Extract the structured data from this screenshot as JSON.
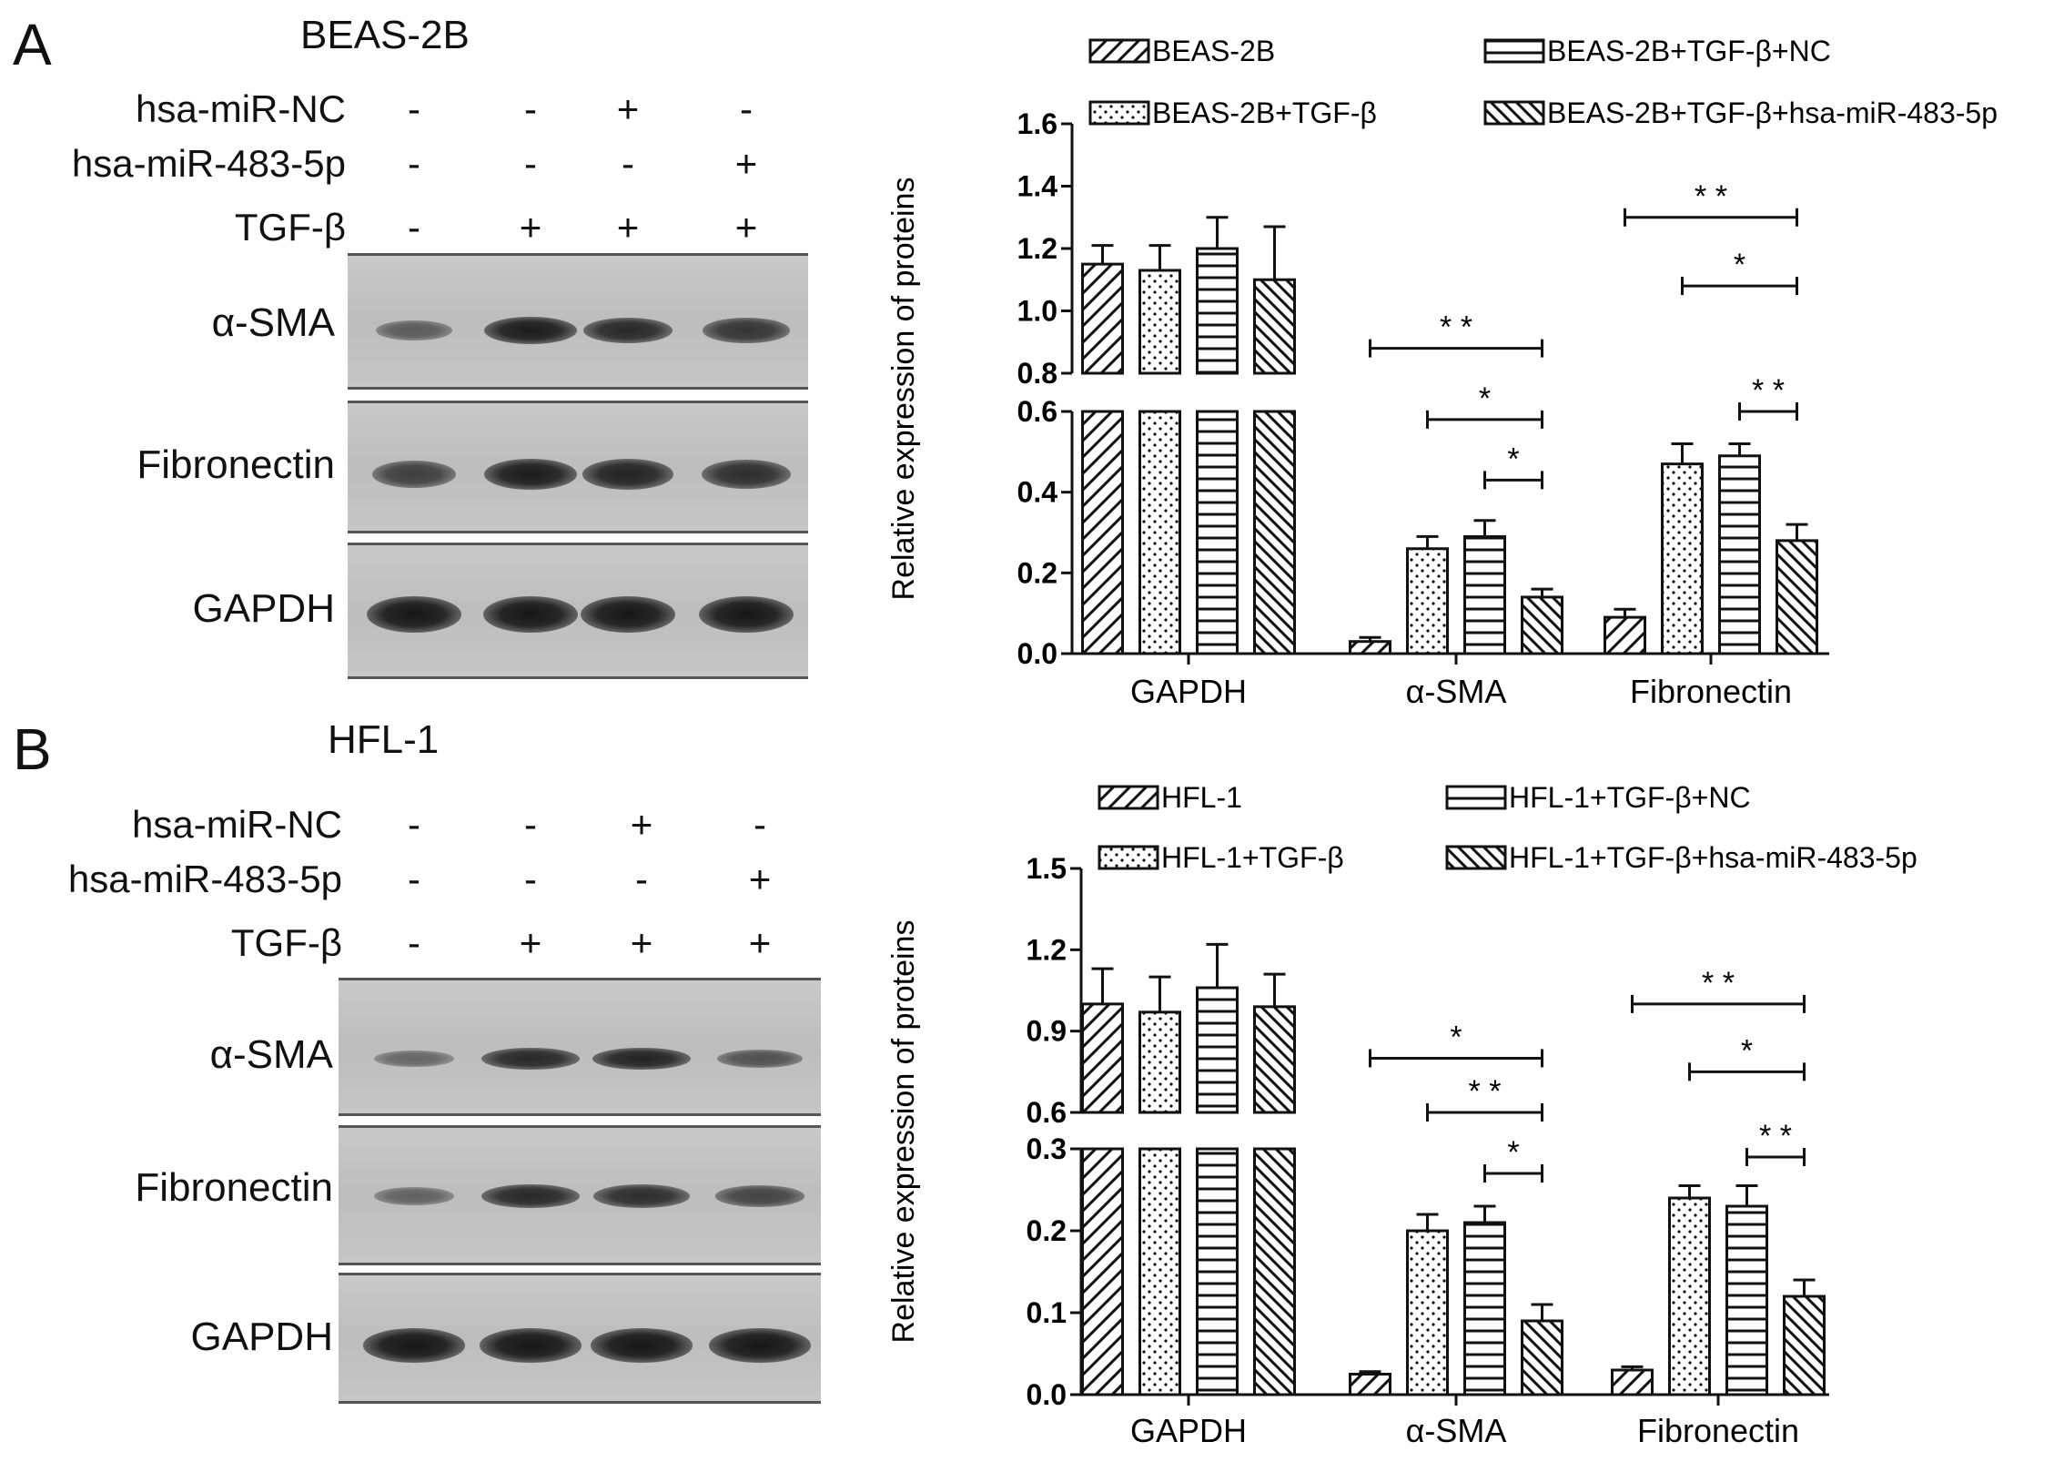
{
  "panels": [
    {
      "letter": "A",
      "cell_line": "BEAS-2B",
      "conditions": [
        {
          "label": "hsa-miR-NC",
          "signs": [
            "-",
            "-",
            "+",
            "-"
          ]
        },
        {
          "label": "hsa-miR-483-5p",
          "signs": [
            "-",
            "-",
            "-",
            "+"
          ]
        },
        {
          "label": "TGF-β",
          "signs": [
            "-",
            "+",
            "+",
            "+"
          ]
        }
      ],
      "blots": [
        {
          "label": "α-SMA",
          "intensity": [
            0.35,
            0.9,
            0.8,
            0.7
          ]
        },
        {
          "label": "Fibronectin",
          "intensity": [
            0.6,
            0.9,
            0.85,
            0.75
          ]
        },
        {
          "label": "GAPDH",
          "intensity": [
            0.95,
            0.95,
            0.95,
            0.95
          ]
        }
      ]
    },
    {
      "letter": "B",
      "cell_line": "HFL-1",
      "conditions": [
        {
          "label": "hsa-miR-NC",
          "signs": [
            "-",
            "-",
            "+",
            "-"
          ]
        },
        {
          "label": "hsa-miR-483-5p",
          "signs": [
            "-",
            "-",
            "-",
            "+"
          ]
        },
        {
          "label": "TGF-β",
          "signs": [
            "-",
            "+",
            "+",
            "+"
          ]
        }
      ],
      "blots": [
        {
          "label": "α-SMA",
          "intensity": [
            0.25,
            0.8,
            0.85,
            0.45
          ]
        },
        {
          "label": "Fibronectin",
          "intensity": [
            0.3,
            0.8,
            0.75,
            0.55
          ]
        },
        {
          "label": "GAPDH",
          "intensity": [
            0.95,
            0.95,
            0.95,
            0.95
          ]
        }
      ]
    }
  ],
  "chart_data": [
    {
      "type": "bar",
      "ylabel": "Relative expression of proteins",
      "categories": [
        "GAPDH",
        "α-SMA",
        "Fibronectin"
      ],
      "axis_break": {
        "lower_range": [
          0,
          0.6
        ],
        "upper_range": [
          0.8,
          1.6
        ]
      },
      "lower_ticks": [
        "0.0",
        "0.2",
        "0.4",
        "0.6"
      ],
      "upper_ticks": [
        "0.8",
        "1.0",
        "1.2",
        "1.4",
        "1.6"
      ],
      "legend_position": "top",
      "series": [
        {
          "name": "BEAS-2B",
          "pattern": "diag-dense",
          "values": [
            1.15,
            0.03,
            0.09
          ],
          "errors": [
            0.06,
            0.01,
            0.02
          ]
        },
        {
          "name": "BEAS-2B+TGF-β",
          "pattern": "dots",
          "values": [
            1.13,
            0.26,
            0.47
          ],
          "errors": [
            0.08,
            0.03,
            0.05
          ]
        },
        {
          "name": "BEAS-2B+TGF-β+NC",
          "pattern": "horizontal",
          "values": [
            1.2,
            0.29,
            0.49
          ],
          "errors": [
            0.1,
            0.04,
            0.03
          ]
        },
        {
          "name": "BEAS-2B+TGF-β+hsa-miR-483-5p",
          "pattern": "diag-back",
          "values": [
            1.1,
            0.14,
            0.28
          ],
          "errors": [
            0.17,
            0.02,
            0.04
          ]
        }
      ],
      "significance": [
        {
          "category": 1,
          "from": 0,
          "to": 3,
          "label": "* *",
          "y": 0.88
        },
        {
          "category": 1,
          "from": 1,
          "to": 3,
          "label": "*",
          "y": 0.58
        },
        {
          "category": 1,
          "from": 2,
          "to": 3,
          "label": "*",
          "y": 0.43
        },
        {
          "category": 2,
          "from": 0,
          "to": 3,
          "label": "* *",
          "y": 1.3
        },
        {
          "category": 2,
          "from": 1,
          "to": 3,
          "label": "*",
          "y": 1.08
        },
        {
          "category": 2,
          "from": 2,
          "to": 3,
          "label": "* *",
          "y": 0.6
        }
      ]
    },
    {
      "type": "bar",
      "ylabel": "Relative expression of proteins",
      "categories": [
        "GAPDH",
        "α-SMA",
        "Fibronectin"
      ],
      "axis_break": {
        "lower_range": [
          0,
          0.3
        ],
        "upper_range": [
          0.6,
          1.5
        ]
      },
      "lower_ticks": [
        "0.0",
        "0.1",
        "0.2",
        "0.3"
      ],
      "upper_ticks": [
        "0.6",
        "0.9",
        "1.2",
        "1.5"
      ],
      "legend_position": "top",
      "series": [
        {
          "name": "HFL-1",
          "pattern": "diag-dense",
          "values": [
            1.0,
            0.025,
            0.03
          ],
          "errors": [
            0.13,
            0.003,
            0.004
          ]
        },
        {
          "name": "HFL-1+TGF-β",
          "pattern": "dots",
          "values": [
            0.97,
            0.2,
            0.24
          ],
          "errors": [
            0.13,
            0.02,
            0.015
          ]
        },
        {
          "name": "HFL-1+TGF-β+NC",
          "pattern": "horizontal",
          "values": [
            1.06,
            0.21,
            0.23
          ],
          "errors": [
            0.16,
            0.02,
            0.025
          ]
        },
        {
          "name": "HFL-1+TGF-β+hsa-miR-483-5p",
          "pattern": "diag-back",
          "values": [
            0.99,
            0.09,
            0.12
          ],
          "errors": [
            0.12,
            0.02,
            0.02
          ]
        }
      ],
      "significance": [
        {
          "category": 1,
          "from": 0,
          "to": 3,
          "label": "*",
          "y": 0.8
        },
        {
          "category": 1,
          "from": 1,
          "to": 3,
          "label": "* *",
          "y": 0.6
        },
        {
          "category": 1,
          "from": 2,
          "to": 3,
          "label": "*",
          "y": 0.27
        },
        {
          "category": 2,
          "from": 0,
          "to": 3,
          "label": "* *",
          "y": 1.0
        },
        {
          "category": 2,
          "from": 1,
          "to": 3,
          "label": "*",
          "y": 0.75
        },
        {
          "category": 2,
          "from": 2,
          "to": 3,
          "label": "* *",
          "y": 0.29
        }
      ]
    }
  ]
}
